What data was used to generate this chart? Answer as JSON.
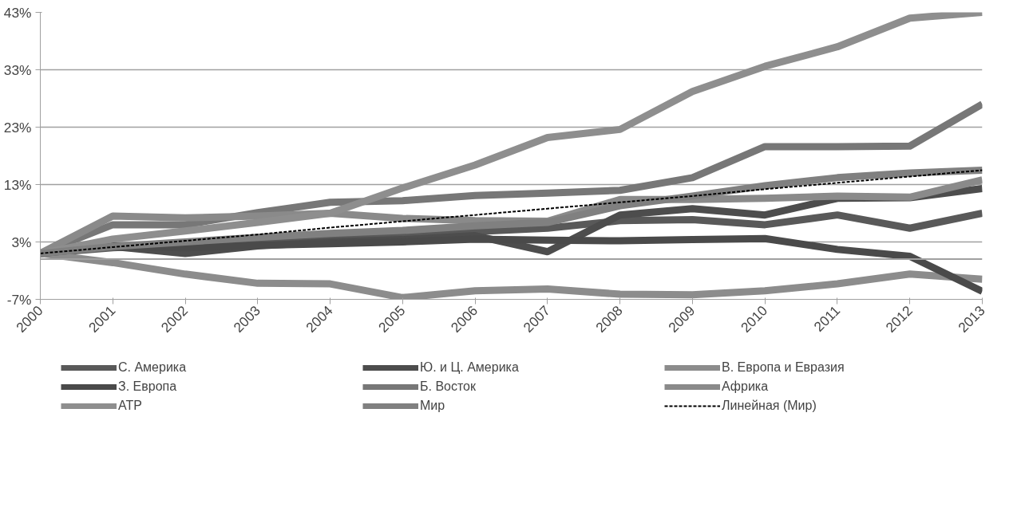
{
  "chart_data": {
    "type": "line",
    "categories": [
      "2000",
      "2001",
      "2002",
      "2003",
      "2004",
      "2005",
      "2006",
      "2007",
      "2008",
      "2009",
      "2010",
      "2011",
      "2012",
      "2013"
    ],
    "ylim": [
      -7,
      43
    ],
    "yticks": [
      {
        "value": -7,
        "label": "-7%"
      },
      {
        "value": 3,
        "label": "3%"
      },
      {
        "value": 13,
        "label": "13%"
      },
      {
        "value": 23,
        "label": "23%"
      },
      {
        "value": 33,
        "label": "33%"
      },
      {
        "value": 43,
        "label": "43%"
      }
    ],
    "grid": "y",
    "legend": "bottom",
    "marker": "none",
    "line_style": "solid",
    "ref_lines": [
      {
        "axis": "y",
        "value": 0,
        "color": "#a0a0a0"
      }
    ],
    "series": [
      {
        "name": "С. Америка",
        "color": "#595959",
        "values": [
          1.0,
          2.0,
          2.5,
          3.0,
          3.6,
          4.2,
          4.8,
          5.4,
          6.7,
          6.9,
          6.0,
          7.7,
          5.4,
          8.0
        ]
      },
      {
        "name": "Ю. и Ц. Америка",
        "color": "#4d4d4d",
        "values": [
          1.0,
          2.2,
          1.0,
          2.3,
          3.0,
          3.4,
          4.1,
          1.3,
          7.7,
          8.8,
          7.7,
          10.6,
          10.7,
          12.3
        ]
      },
      {
        "name": "В. Европа и Евразия",
        "color": "#8c8c8c",
        "values": [
          1.0,
          -0.6,
          -2.6,
          -4.2,
          -4.3,
          -6.7,
          -5.5,
          -5.2,
          -6.1,
          -6.2,
          -5.5,
          -4.3,
          -2.6,
          -3.5
        ]
      },
      {
        "name": "З. Европа",
        "color": "#4a4a4a",
        "values": [
          1.0,
          2.3,
          2.0,
          2.4,
          2.7,
          3.0,
          3.5,
          3.3,
          3.2,
          3.4,
          3.6,
          1.7,
          0.5,
          -5.6
        ]
      },
      {
        "name": "Б. Восток",
        "color": "#777777",
        "values": [
          1.0,
          6.0,
          6.0,
          8.1,
          9.9,
          10.2,
          11.1,
          11.5,
          12.0,
          14.2,
          19.6,
          19.6,
          19.7,
          27.0
        ]
      },
      {
        "name": "Африка",
        "color": "#8a8a8a",
        "values": [
          1.0,
          7.5,
          7.2,
          7.5,
          8.0,
          7.1,
          6.7,
          6.6,
          10.4,
          10.4,
          10.6,
          11.0,
          10.8,
          13.8
        ]
      },
      {
        "name": "АТР",
        "color": "#8e8e8e",
        "values": [
          1.0,
          3.5,
          4.9,
          6.4,
          8.0,
          12.4,
          16.4,
          21.2,
          22.6,
          29.2,
          33.6,
          37.0,
          42.0,
          43.0
        ]
      },
      {
        "name": "Мир",
        "color": "#808080",
        "values": [
          1.0,
          2.2,
          3.0,
          3.8,
          4.5,
          5.0,
          5.8,
          6.4,
          9.3,
          11.0,
          12.8,
          14.2,
          15.0,
          15.5
        ]
      },
      {
        "name": "Линейная (Мир)",
        "color": "#000000",
        "line_style": "dashed",
        "values": [
          1.0,
          2.1,
          3.2,
          4.3,
          5.5,
          6.6,
          7.7,
          8.8,
          9.9,
          11.0,
          12.2,
          13.3,
          14.4,
          15.5
        ]
      }
    ]
  }
}
